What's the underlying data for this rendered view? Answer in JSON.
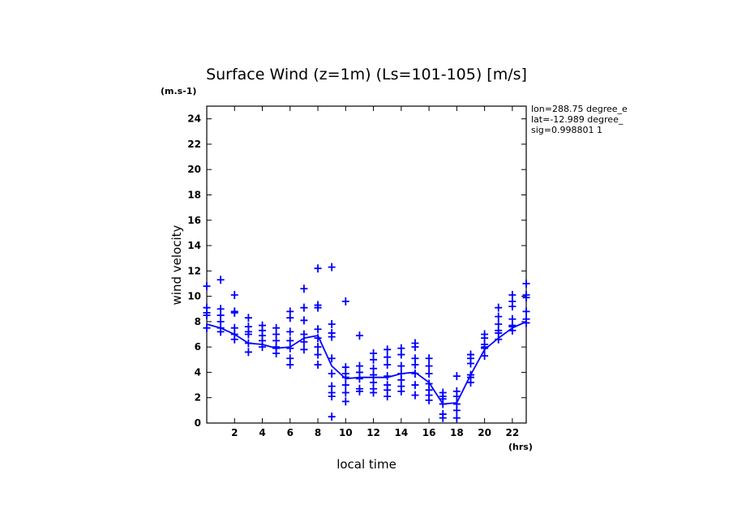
{
  "chart_data": {
    "type": "scatter",
    "title": "Surface Wind (z=1m) (Ls=101-105) [m/s]",
    "ylabel": "wind velocity",
    "xlabel": "local time",
    "y_unit": "(m.s-1)",
    "x_unit": "(hrs)",
    "xlim": [
      0,
      23
    ],
    "ylim": [
      0,
      25
    ],
    "x_ticks": [
      2,
      4,
      6,
      8,
      10,
      12,
      14,
      16,
      18,
      20,
      22
    ],
    "y_ticks": [
      0,
      2,
      4,
      6,
      8,
      10,
      12,
      14,
      16,
      18,
      20,
      22,
      24
    ],
    "info": [
      "lon=288.75 degree_e",
      "lat=-12.989 degree_",
      "sig=0.998801 1"
    ],
    "color": "#0000ff",
    "series": [
      {
        "kind": "mean-line",
        "x": [
          0.0,
          1.0,
          2.0,
          3.0,
          4.0,
          5.0,
          6.0,
          7.0,
          8.0,
          9.0,
          10.0,
          11.0,
          12.0,
          13.0,
          14.0,
          15.0,
          16.0,
          17.0,
          18.0,
          19.0,
          20.0,
          21.0,
          22.0,
          23.0
        ],
        "y": [
          7.8,
          7.5,
          7.0,
          6.3,
          6.2,
          5.9,
          6.0,
          6.7,
          6.9,
          4.5,
          3.5,
          3.6,
          3.6,
          3.6,
          3.9,
          4.0,
          3.2,
          1.5,
          1.6,
          3.8,
          5.8,
          6.7,
          7.5,
          8.0
        ]
      },
      {
        "kind": "samples",
        "points": [
          [
            0.0,
            10.8
          ],
          [
            0.0,
            9.1
          ],
          [
            0.0,
            8.7
          ],
          [
            0.0,
            8.5
          ],
          [
            0.0,
            7.5
          ],
          [
            1.0,
            11.3
          ],
          [
            1.0,
            9.0
          ],
          [
            1.0,
            8.5
          ],
          [
            1.0,
            8.0
          ],
          [
            1.0,
            7.5
          ],
          [
            1.0,
            7.2
          ],
          [
            2.0,
            10.1
          ],
          [
            2.0,
            8.8
          ],
          [
            2.0,
            8.7
          ],
          [
            2.0,
            7.5
          ],
          [
            2.0,
            7.0
          ],
          [
            2.0,
            6.6
          ],
          [
            3.0,
            8.3
          ],
          [
            3.0,
            7.6
          ],
          [
            3.0,
            7.2
          ],
          [
            3.0,
            7.0
          ],
          [
            3.0,
            6.3
          ],
          [
            3.0,
            5.6
          ],
          [
            4.0,
            7.7
          ],
          [
            4.0,
            7.3
          ],
          [
            4.0,
            6.9
          ],
          [
            4.0,
            6.5
          ],
          [
            4.0,
            6.0
          ],
          [
            5.0,
            7.5
          ],
          [
            5.0,
            7.0
          ],
          [
            5.0,
            6.5
          ],
          [
            5.0,
            6.0
          ],
          [
            5.0,
            5.9
          ],
          [
            5.0,
            5.5
          ],
          [
            6.0,
            8.8
          ],
          [
            6.0,
            8.3
          ],
          [
            6.0,
            7.2
          ],
          [
            6.0,
            6.5
          ],
          [
            6.0,
            5.9
          ],
          [
            6.0,
            5.1
          ],
          [
            6.0,
            4.6
          ],
          [
            7.0,
            10.6
          ],
          [
            7.0,
            9.1
          ],
          [
            7.0,
            8.1
          ],
          [
            7.0,
            7.0
          ],
          [
            7.0,
            6.4
          ],
          [
            7.0,
            5.8
          ],
          [
            8.0,
            12.2
          ],
          [
            8.0,
            9.3
          ],
          [
            8.0,
            9.1
          ],
          [
            8.0,
            7.4
          ],
          [
            8.0,
            6.7
          ],
          [
            8.0,
            6.0
          ],
          [
            8.0,
            5.4
          ],
          [
            8.0,
            4.6
          ],
          [
            9.0,
            12.3
          ],
          [
            9.0,
            7.8
          ],
          [
            9.0,
            7.1
          ],
          [
            9.0,
            6.8
          ],
          [
            9.0,
            5.1
          ],
          [
            9.0,
            3.9
          ],
          [
            9.0,
            2.9
          ],
          [
            9.0,
            2.4
          ],
          [
            9.0,
            2.1
          ],
          [
            9.0,
            0.5
          ],
          [
            10.0,
            9.6
          ],
          [
            10.0,
            4.4
          ],
          [
            10.0,
            3.9
          ],
          [
            10.0,
            3.6
          ],
          [
            10.0,
            3.0
          ],
          [
            10.0,
            2.4
          ],
          [
            10.0,
            1.7
          ],
          [
            11.0,
            6.9
          ],
          [
            11.0,
            4.5
          ],
          [
            11.0,
            4.0
          ],
          [
            11.0,
            3.5
          ],
          [
            11.0,
            2.7
          ],
          [
            11.0,
            2.5
          ],
          [
            12.0,
            5.5
          ],
          [
            12.0,
            5.0
          ],
          [
            12.0,
            4.3
          ],
          [
            12.0,
            3.8
          ],
          [
            12.0,
            3.2
          ],
          [
            12.0,
            2.7
          ],
          [
            12.0,
            2.4
          ],
          [
            13.0,
            5.8
          ],
          [
            13.0,
            5.2
          ],
          [
            13.0,
            4.6
          ],
          [
            13.0,
            3.7
          ],
          [
            13.0,
            3.0
          ],
          [
            13.0,
            2.6
          ],
          [
            13.0,
            2.1
          ],
          [
            14.0,
            5.9
          ],
          [
            14.0,
            5.4
          ],
          [
            14.0,
            4.5
          ],
          [
            14.0,
            3.9
          ],
          [
            14.0,
            3.4
          ],
          [
            14.0,
            2.9
          ],
          [
            14.0,
            2.5
          ],
          [
            15.0,
            6.3
          ],
          [
            15.0,
            6.0
          ],
          [
            15.0,
            5.1
          ],
          [
            15.0,
            4.6
          ],
          [
            15.0,
            3.9
          ],
          [
            15.0,
            3.0
          ],
          [
            15.0,
            2.2
          ],
          [
            16.0,
            5.1
          ],
          [
            16.0,
            4.5
          ],
          [
            16.0,
            3.9
          ],
          [
            16.0,
            3.1
          ],
          [
            16.0,
            2.6
          ],
          [
            16.0,
            2.2
          ],
          [
            16.0,
            1.8
          ],
          [
            17.0,
            2.4
          ],
          [
            17.0,
            2.1
          ],
          [
            17.0,
            1.9
          ],
          [
            17.0,
            1.5
          ],
          [
            17.0,
            0.7
          ],
          [
            17.0,
            0.4
          ],
          [
            18.0,
            3.7
          ],
          [
            18.0,
            2.5
          ],
          [
            18.0,
            2.1
          ],
          [
            18.0,
            1.5
          ],
          [
            18.0,
            1.0
          ],
          [
            18.0,
            0.4
          ],
          [
            19.0,
            5.4
          ],
          [
            19.0,
            5.1
          ],
          [
            19.0,
            4.7
          ],
          [
            19.0,
            3.8
          ],
          [
            19.0,
            3.6
          ],
          [
            19.0,
            3.2
          ],
          [
            20.0,
            7.0
          ],
          [
            20.0,
            6.7
          ],
          [
            20.0,
            6.2
          ],
          [
            20.0,
            6.0
          ],
          [
            20.0,
            5.9
          ],
          [
            20.0,
            5.3
          ],
          [
            21.0,
            9.1
          ],
          [
            21.0,
            8.4
          ],
          [
            21.0,
            7.8
          ],
          [
            21.0,
            7.3
          ],
          [
            21.0,
            7.1
          ],
          [
            21.0,
            6.6
          ],
          [
            22.0,
            10.1
          ],
          [
            22.0,
            9.6
          ],
          [
            22.0,
            9.2
          ],
          [
            22.0,
            8.2
          ],
          [
            22.0,
            7.7
          ],
          [
            22.0,
            7.6
          ],
          [
            22.0,
            7.3
          ],
          [
            23.0,
            11.0
          ],
          [
            23.0,
            10.1
          ],
          [
            23.0,
            9.9
          ],
          [
            23.0,
            8.8
          ],
          [
            23.0,
            8.2
          ],
          [
            23.0,
            7.9
          ]
        ]
      }
    ]
  }
}
